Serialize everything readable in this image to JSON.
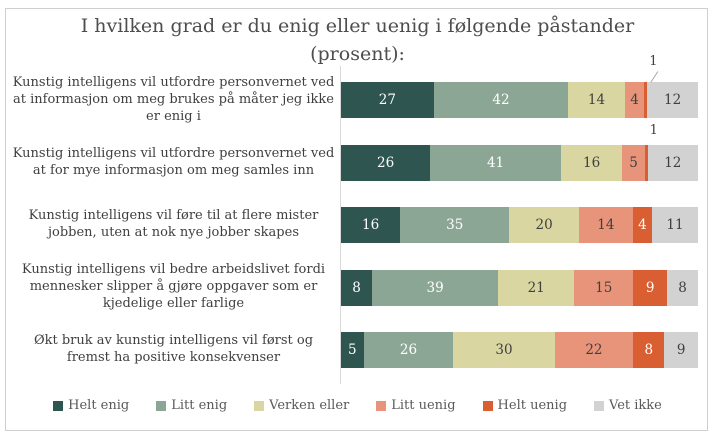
{
  "title": {
    "full": "I hvilken grad er du enig eller uenig i følgende påstander (prosent):",
    "line1": "I hvilken grad er du enig eller uenig i følgende påstander",
    "line2": "(prosent):"
  },
  "chart_data": {
    "type": "bar",
    "variant": "horizontal-stacked",
    "unit": "percent",
    "title": "I hvilken grad er du enig eller uenig i følgende påstander (prosent):",
    "legend_position": "bottom",
    "grid": false,
    "categories": [
      "Kunstig intelligens vil utfordre personvernet ved at informasjon om meg brukes på måter jeg ikke er enig i",
      "Kunstig intelligens vil utfordre personvernet ved at for mye informasjon om meg samles inn",
      "Kunstig intelligens vil føre til at flere mister jobben, uten at nok nye jobber skapes",
      "Kunstig intelligens vil bedre arbeidslivet fordi mennesker slipper å gjøre oppgaver som er kjedelige eller farlige",
      "Økt bruk av kunstig intelligens vil først og fremst ha positive konsekvenser"
    ],
    "series": [
      {
        "name": "Helt enig",
        "color": "#2f5550",
        "label_color": "#ffffff",
        "values": [
          27,
          26,
          16,
          8,
          5
        ]
      },
      {
        "name": "Litt enig",
        "color": "#8ca695",
        "label_color": "#ffffff",
        "values": [
          42,
          41,
          35,
          39,
          26
        ]
      },
      {
        "name": "Verken eller",
        "color": "#dad6a2",
        "label_color": "#3f3f3f",
        "values": [
          14,
          16,
          20,
          21,
          30
        ]
      },
      {
        "name": "Litt uenig",
        "color": "#e8947a",
        "label_color": "#3f3f3f",
        "values": [
          4,
          5,
          14,
          15,
          22
        ]
      },
      {
        "name": "Helt uenig",
        "color": "#d95f33",
        "label_color": "#ffffff",
        "values": [
          1,
          1,
          4,
          9,
          8
        ]
      },
      {
        "name": "Vet ikke",
        "color": "#d2d2d2",
        "label_color": "#3f3f3f",
        "values": [
          12,
          12,
          11,
          8,
          9
        ]
      }
    ],
    "outside_value_labels": [
      {
        "row": 0,
        "series": 4,
        "text": "1",
        "callout": true
      },
      {
        "row": 1,
        "series": 4,
        "text": "1",
        "callout": false
      }
    ]
  },
  "colors": {
    "frame_border": "#d1ced1",
    "axis_line": "#d9d9d9",
    "title_text": "#4d4d4d",
    "category_text": "#3f3f3f",
    "legend_text": "#595959",
    "background": "#ffffff"
  }
}
